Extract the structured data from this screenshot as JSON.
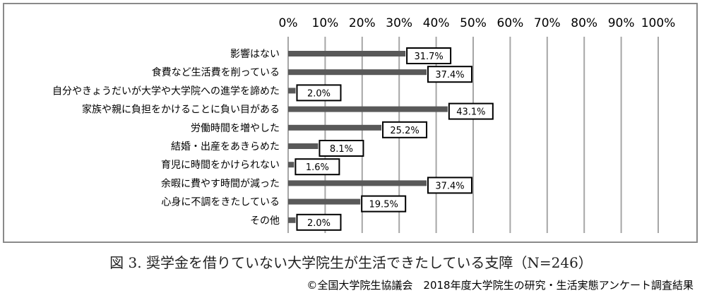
{
  "chart_data": {
    "type": "bar",
    "orientation": "horizontal",
    "categories": [
      "影響はない",
      "食費など生活費を削っている",
      "自分やきょうだいが大学や大学院への進学を諦めた",
      "家族や親に負担をかけることに負い目がある",
      "労働時間を増やした",
      "結婚・出産をあきらめた",
      "育児に時間をかけられない",
      "余暇に費やす時間が減った",
      "心身に不調をきたしている",
      "その他"
    ],
    "values": [
      31.7,
      37.4,
      2.0,
      43.1,
      25.2,
      8.1,
      1.6,
      37.4,
      19.5,
      2.0
    ],
    "data_labels": [
      "31.7%",
      "37.4%",
      "2.0%",
      "43.1%",
      "25.2%",
      "8.1%",
      "1.6%",
      "37.4%",
      "19.5%",
      "2.0%"
    ],
    "xlim": [
      0,
      100
    ],
    "x_ticks": [
      "0%",
      "10%",
      "20%",
      "30%",
      "40%",
      "50%",
      "60%",
      "70%",
      "80%",
      "90%",
      "100%"
    ],
    "x_axis_position": "top",
    "grid": true,
    "legend": "none",
    "bar_color": "#595959",
    "grid_color": "#a6a6a6"
  },
  "caption": "図 3. 奨学金を借りていない大学院生が生活できたしている支障（N=246）",
  "source": "©全国大学院生協議会　2018年度大学院生の研究・生活実態アンケート調査結果"
}
